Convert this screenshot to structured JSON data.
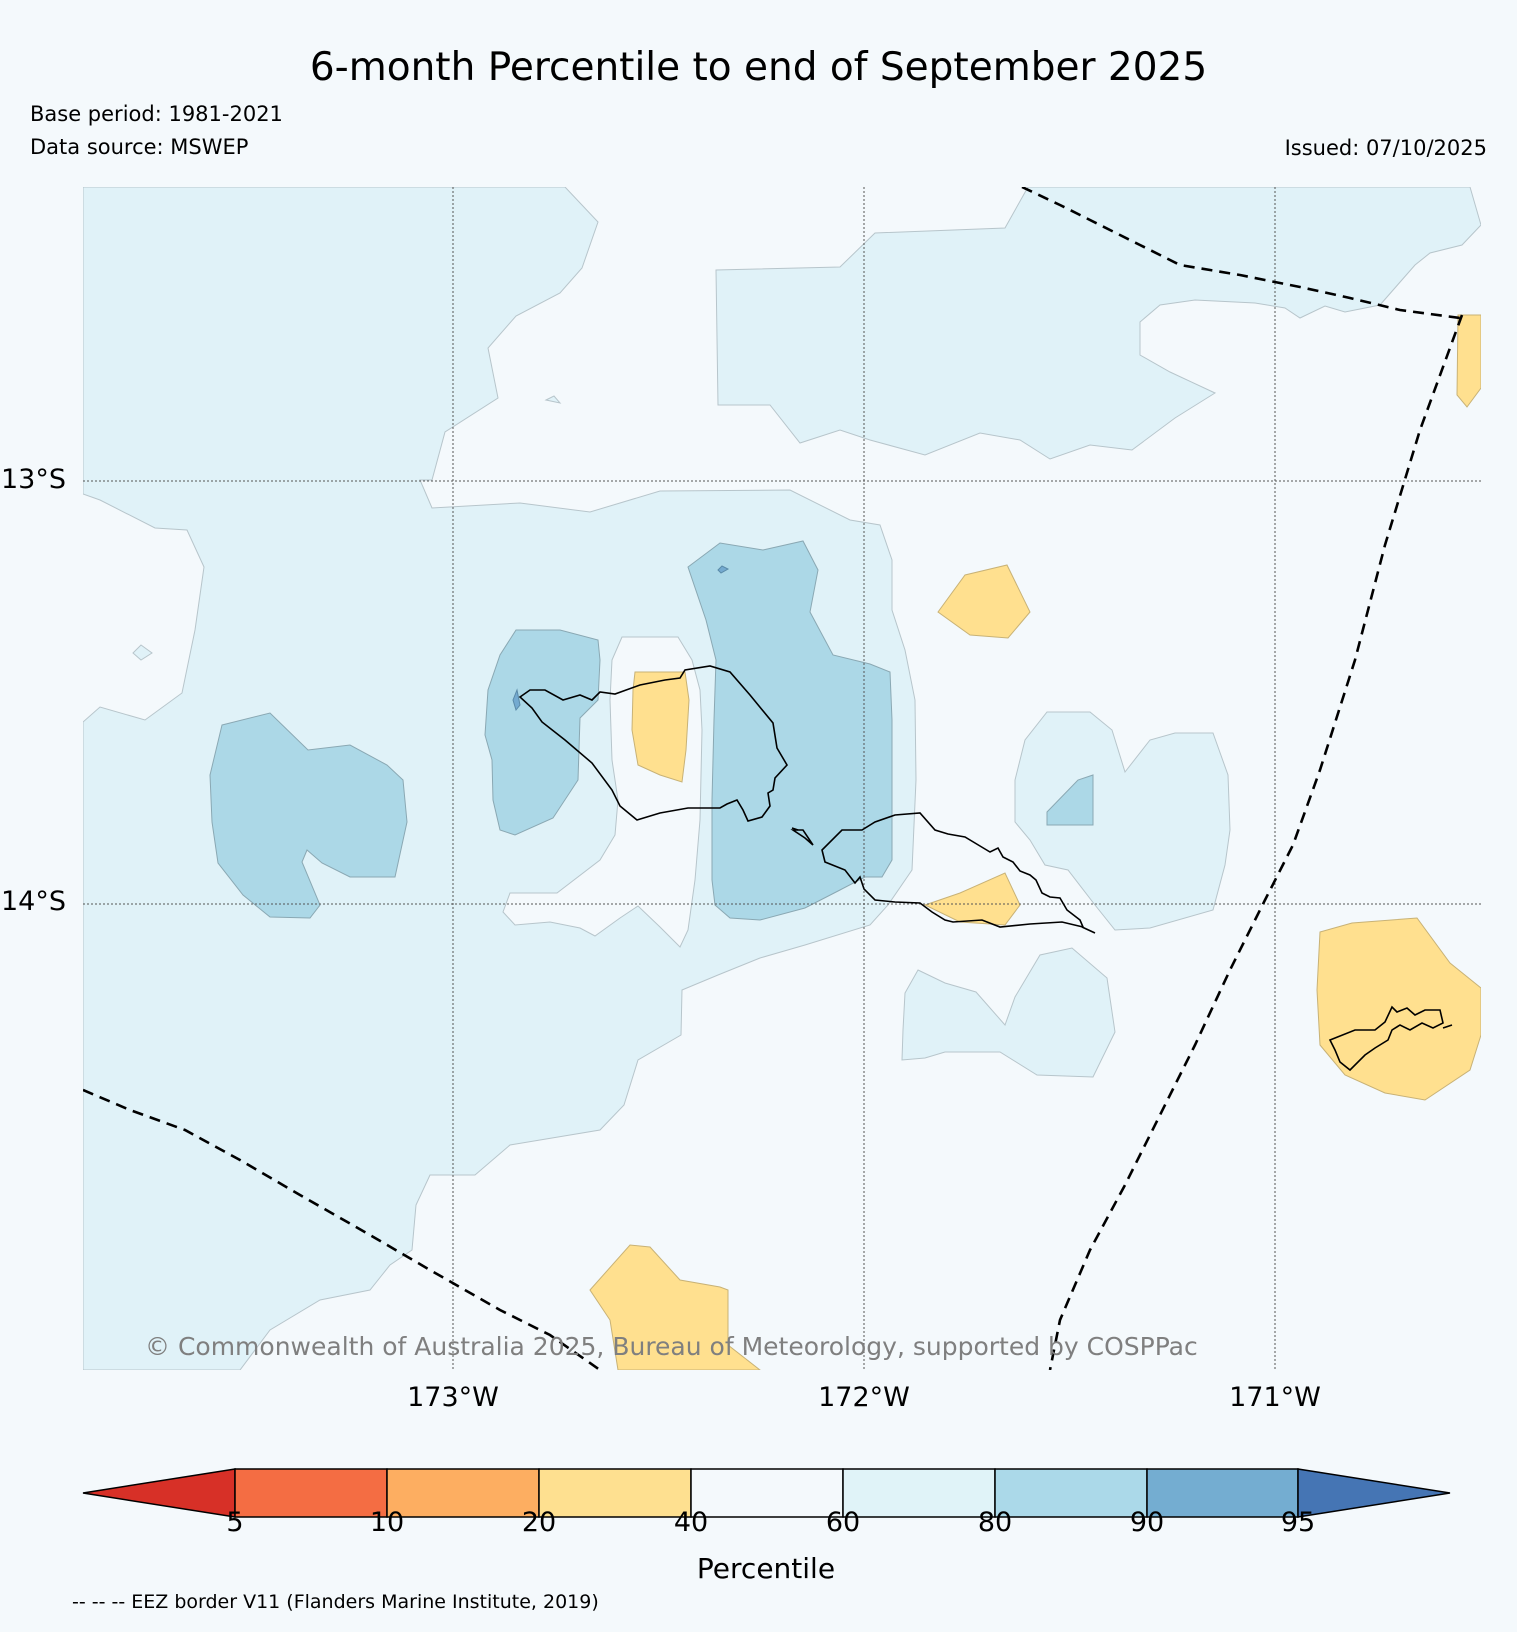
{
  "title": "6-month Percentile to end of September 2025",
  "base_period": "Base period: 1981-2021",
  "data_source": "Data source: MSWEP",
  "issued": "Issued: 07/10/2025",
  "map": {
    "lat_labels": [
      "13°S",
      "14°S"
    ],
    "lon_labels": [
      "173°W",
      "172°W",
      "171°W"
    ],
    "copyright": "© Commonwealth of Australia 2025, Bureau of Meteorology, supported by COSPPac",
    "region_colors": {
      "below_60": "#ffe08f",
      "60_80": "#f4f9fc",
      "80_90": "#e0f2f8",
      "90_95": "#acd8e7",
      "above_95": "#74aad0"
    }
  },
  "colorbar": {
    "label": "Percentile",
    "ticks": [
      "5",
      "10",
      "20",
      "40",
      "60",
      "80",
      "90",
      "95"
    ],
    "colors": [
      "#d73027",
      "#f46d43",
      "#fdae61",
      "#fee090",
      "#f4f9fc",
      "#e0f3f8",
      "#abd9e9",
      "#74add1",
      "#4575b4"
    ]
  },
  "eez_note": "-- -- -- EEZ border V11 (Flanders Marine Institute, 2019)"
}
